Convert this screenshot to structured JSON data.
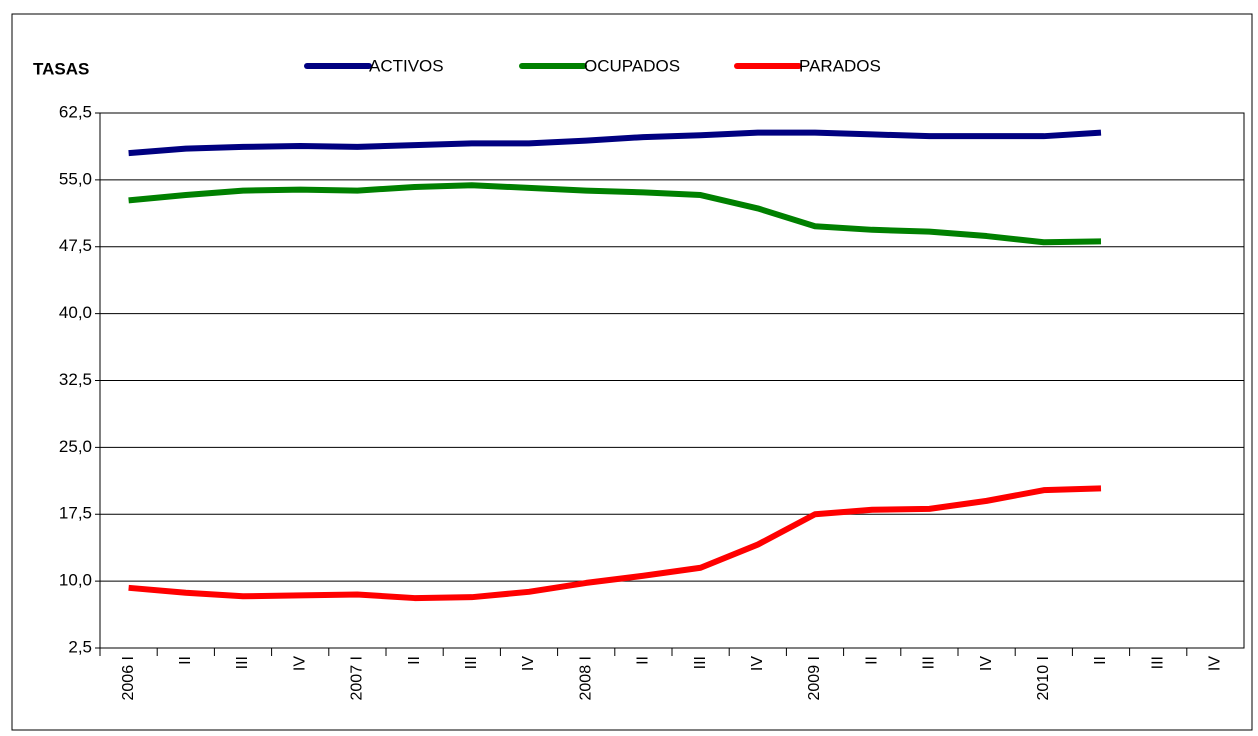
{
  "chart_data": {
    "type": "line",
    "title": "TASAS",
    "categories": [
      "2006 I",
      "II",
      "III",
      "IV",
      "2007 I",
      "II",
      "III",
      "IV",
      "2008 I",
      "II",
      "III",
      "IV",
      "2009 I",
      "II",
      "III",
      "IV",
      "2010 I",
      "II",
      "III",
      "IV"
    ],
    "series": [
      {
        "name": "ACTIVOS",
        "color": "#000080",
        "values": [
          58.0,
          58.5,
          58.7,
          58.8,
          58.7,
          58.9,
          59.1,
          59.1,
          59.4,
          59.8,
          60.0,
          60.3,
          60.3,
          60.1,
          59.9,
          59.9,
          59.9,
          60.3,
          null,
          null
        ]
      },
      {
        "name": "OCUPADOS",
        "color": "#008000",
        "values": [
          52.7,
          53.3,
          53.8,
          53.9,
          53.8,
          54.2,
          54.4,
          54.1,
          53.8,
          53.6,
          53.3,
          51.8,
          49.8,
          49.4,
          49.2,
          48.7,
          48.0,
          48.1,
          null,
          null
        ]
      },
      {
        "name": "PARADOS",
        "color": "#ff0000",
        "values": [
          9.25,
          8.7,
          8.3,
          8.4,
          8.5,
          8.1,
          8.2,
          8.8,
          9.8,
          10.6,
          11.5,
          14.1,
          17.5,
          18.0,
          18.1,
          19.0,
          20.2,
          20.4,
          null,
          null
        ]
      }
    ],
    "ylim": [
      2.5,
      62.5
    ],
    "yticks": [
      {
        "value": 2.5,
        "label": "2,5"
      },
      {
        "value": 10,
        "label": "10,0"
      },
      {
        "value": 17.5,
        "label": "17,5"
      },
      {
        "value": 25,
        "label": "25,0"
      },
      {
        "value": 32.5,
        "label": "32,5"
      },
      {
        "value": 40,
        "label": "40,0"
      },
      {
        "value": 47.5,
        "label": "47,5"
      },
      {
        "value": 55,
        "label": "55,0"
      },
      {
        "value": 62.5,
        "label": "62,5"
      }
    ],
    "grid": true
  }
}
